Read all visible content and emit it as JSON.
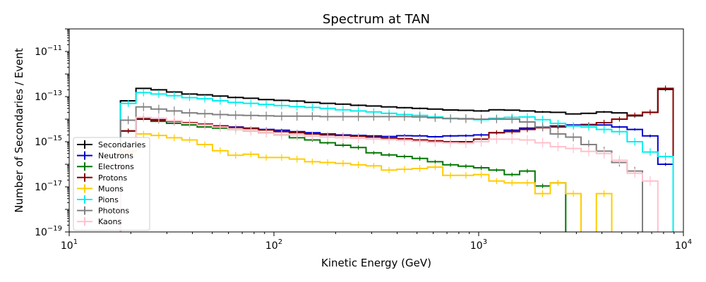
{
  "chart_data": {
    "type": "line",
    "title": "Spectrum at TAN",
    "xlabel": "Kinetic Energy (GeV)",
    "ylabel": "Number of Secondaries / Event",
    "xscale": "log",
    "yscale": "log",
    "xlim": [
      10,
      10000
    ],
    "ylim": [
      1e-19,
      1e-10
    ],
    "grid": false,
    "legend_position": "lower-left",
    "x_tick_labels": [
      {
        "base": "10",
        "exp": "1",
        "value": 10
      },
      {
        "base": "10",
        "exp": "2",
        "value": 100
      },
      {
        "base": "10",
        "exp": "3",
        "value": 1000
      },
      {
        "base": "10",
        "exp": "4",
        "value": 10000
      }
    ],
    "y_tick_labels": [
      {
        "base": "10",
        "exp": "−19",
        "value": 1e-19
      },
      {
        "base": "10",
        "exp": "−17",
        "value": 1e-17
      },
      {
        "base": "10",
        "exp": "−15",
        "value": 1e-15
      },
      {
        "base": "10",
        "exp": "−13",
        "value": 1e-13
      },
      {
        "base": "10",
        "exp": "−11",
        "value": 1e-11
      }
    ],
    "bin_edges": [
      17.8,
      21.2,
      25.1,
      29.9,
      35.5,
      42.2,
      50.1,
      59.6,
      70.8,
      84.1,
      100,
      118.9,
      141.3,
      167.9,
      199.5,
      237.1,
      281.8,
      334.9,
      398.1,
      473.2,
      562.3,
      668.3,
      794.3,
      944.1,
      1122,
      1334,
      1585,
      1884,
      2239,
      2661,
      3162,
      3758,
      4467,
      5309,
      6310,
      7499,
      8913
    ],
    "series": [
      {
        "name": "Secondaries",
        "color": "#000000",
        "values": [
          6.5e-14,
          2.3e-13,
          2e-13,
          1.6e-13,
          1.3e-13,
          1.2e-13,
          1.05e-13,
          9.2e-14,
          8.4e-14,
          7.4e-14,
          6.8e-14,
          6.3e-14,
          5.5e-14,
          5e-14,
          4.6e-14,
          4.1e-14,
          3.8e-14,
          3.5e-14,
          3.2e-14,
          3e-14,
          2.8e-14,
          2.55e-14,
          2.45e-14,
          2.3e-14,
          2.6e-14,
          2.5e-14,
          2.3e-14,
          2.1e-14,
          2e-14,
          1.7e-14,
          1.8e-14,
          2.1e-14,
          1.9e-14,
          1.4e-14,
          2e-14,
          2.1e-13,
          null
        ]
      },
      {
        "name": "Neutrons",
        "color": "#0000cc",
        "values": [
          3e-15,
          1e-14,
          9.5e-15,
          8e-15,
          6.5e-15,
          6e-15,
          5e-15,
          4.5e-15,
          4e-15,
          3.5e-15,
          3.2e-15,
          2.8e-15,
          2.5e-15,
          2.2e-15,
          2e-15,
          1.9e-15,
          1.8e-15,
          1.7e-15,
          1.85e-15,
          1.8e-15,
          1.65e-15,
          1.8e-15,
          1.85e-15,
          2e-15,
          2.5e-15,
          3.2e-15,
          4e-15,
          4.5e-15,
          5e-15,
          5.5e-15,
          5.8e-15,
          5.5e-15,
          4.5e-15,
          3.5e-15,
          1.8e-15,
          1e-16,
          1e-16
        ]
      },
      {
        "name": "Electrons",
        "color": "#007700",
        "values": [
          3e-15,
          1.1e-14,
          8e-15,
          6.5e-15,
          5.5e-15,
          4.5e-15,
          4e-15,
          3.5e-15,
          3e-15,
          2.5e-15,
          2e-15,
          1.5e-15,
          1.2e-15,
          9e-16,
          7e-16,
          5.5e-16,
          3.2e-16,
          2.6e-16,
          2.2e-16,
          1.8e-16,
          1.3e-16,
          9.5e-17,
          8.2e-17,
          7e-17,
          5.5e-17,
          3.5e-17,
          5e-17,
          1.1e-17,
          1.5e-17,
          null,
          null,
          null,
          null,
          null,
          null,
          null,
          null
        ]
      },
      {
        "name": "Protons",
        "color": "#880000",
        "values": [
          3e-15,
          1.1e-14,
          9e-15,
          8e-15,
          7e-15,
          6e-15,
          5e-15,
          4.3e-15,
          3.8e-15,
          3.3e-15,
          2.8e-15,
          2.5e-15,
          2.2e-15,
          2e-15,
          1.9e-15,
          1.75e-15,
          1.6e-15,
          1.45e-15,
          1.35e-15,
          1.2e-15,
          1.1e-15,
          1e-15,
          1e-15,
          1.3e-15,
          2.5e-15,
          2.8e-15,
          3.5e-15,
          4.2e-15,
          4.5e-15,
          5e-15,
          5.5e-15,
          7e-15,
          1e-14,
          1.5e-14,
          2e-14,
          2.3e-13,
          null
        ]
      },
      {
        "name": "Muons",
        "color": "#ffcc00",
        "values": [
          3.5e-16,
          2.2e-15,
          1.9e-15,
          1.5e-15,
          1.2e-15,
          7.5e-16,
          4e-16,
          2.5e-16,
          2.8e-16,
          2e-16,
          2e-16,
          1.7e-16,
          1.3e-16,
          1.2e-16,
          1.1e-16,
          9.5e-17,
          8.5e-17,
          5.5e-17,
          6e-17,
          6.5e-17,
          7.5e-17,
          3.2e-17,
          3.2e-17,
          3.5e-17,
          1.8e-17,
          1.5e-17,
          1.5e-17,
          5e-18,
          1.5e-17,
          5e-18,
          null,
          5e-18,
          null,
          null,
          null,
          null,
          null
        ]
      },
      {
        "name": "Pions",
        "color": "#00eeee",
        "values": [
          5e-14,
          1.5e-13,
          1.3e-13,
          1.1e-13,
          9e-14,
          8e-14,
          6.5e-14,
          5.5e-14,
          5e-14,
          4.5e-14,
          4e-14,
          3.6e-14,
          3.3e-14,
          3e-14,
          2.6e-14,
          2.3e-14,
          2.1e-14,
          1.8e-14,
          1.6e-14,
          1.45e-14,
          1.25e-14,
          1.1e-14,
          1e-14,
          9.5e-15,
          1.1e-14,
          1.2e-14,
          1.25e-14,
          9.5e-15,
          6.5e-15,
          5e-15,
          4.5e-15,
          3.5e-15,
          2.8e-15,
          1e-15,
          3.5e-16,
          2.2e-16,
          5e-18
        ]
      },
      {
        "name": "Photons",
        "color": "#808080",
        "values": [
          9e-15,
          3.5e-14,
          2.8e-14,
          2.3e-14,
          1.9e-14,
          1.75e-14,
          1.6e-14,
          1.5e-14,
          1.45e-14,
          1.4e-14,
          1.35e-14,
          1.35e-14,
          1.35e-14,
          1.3e-14,
          1.3e-14,
          1.3e-14,
          1.3e-14,
          1.3e-14,
          1.3e-14,
          1.25e-14,
          1.15e-14,
          1.05e-14,
          1.05e-14,
          1e-14,
          1e-14,
          1e-14,
          7.5e-15,
          4.5e-15,
          2.2e-15,
          1.6e-15,
          7.5e-16,
          3.8e-16,
          1.2e-16,
          5e-17,
          null,
          null,
          null
        ]
      },
      {
        "name": "Kaons",
        "color": "#ffc0cb",
        "values": [
          4e-16,
          1.2e-14,
          1.1e-14,
          8.5e-15,
          6.5e-15,
          5.5e-15,
          4.5e-15,
          3.5e-15,
          3e-15,
          2.5e-15,
          2e-15,
          2e-15,
          1.8e-15,
          1.6e-15,
          1.5e-15,
          1.4e-15,
          1.3e-15,
          1.25e-15,
          1.15e-15,
          1.05e-15,
          9.5e-16,
          9e-16,
          8.5e-16,
          1e-15,
          1.3e-15,
          1.3e-15,
          1.2e-15,
          9e-16,
          6e-16,
          5e-16,
          3.7e-16,
          3e-16,
          1.5e-16,
          4e-17,
          1.8e-17,
          null,
          null
        ]
      }
    ]
  }
}
